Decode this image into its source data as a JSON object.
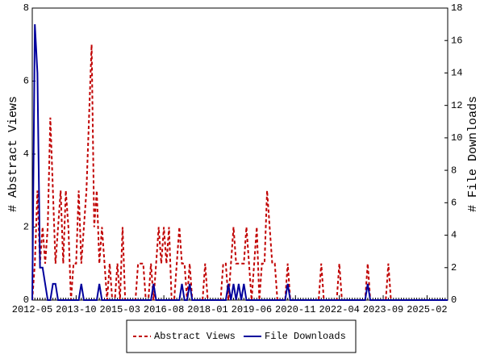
{
  "chart_data": {
    "type": "line",
    "y_label": "# Abstract Views",
    "y2_label": "# File Downloads",
    "x": [
      "2012-05",
      "2012-06",
      "2012-07",
      "2012-08",
      "2012-09",
      "2012-10",
      "2012-11",
      "2012-12",
      "2013-01",
      "2013-02",
      "2013-03",
      "2013-04",
      "2013-05",
      "2013-06",
      "2013-07",
      "2013-08",
      "2013-09",
      "2013-10",
      "2013-11",
      "2013-12",
      "2014-01",
      "2014-02",
      "2014-03",
      "2014-04",
      "2014-05",
      "2014-06",
      "2014-07",
      "2014-08",
      "2014-09",
      "2014-10",
      "2014-11",
      "2014-12",
      "2015-01",
      "2015-02",
      "2015-03",
      "2015-04",
      "2015-05",
      "2015-06",
      "2015-07",
      "2015-08",
      "2015-09",
      "2015-10",
      "2015-11",
      "2015-12",
      "2016-01",
      "2016-02",
      "2016-03",
      "2016-04",
      "2016-05",
      "2016-06",
      "2016-07",
      "2016-08",
      "2016-09",
      "2016-10",
      "2016-11",
      "2016-12",
      "2017-01",
      "2017-02",
      "2017-03",
      "2017-04",
      "2017-05",
      "2017-06",
      "2017-07",
      "2017-08",
      "2017-09",
      "2017-10",
      "2017-11",
      "2017-12",
      "2018-01",
      "2018-02",
      "2018-03",
      "2018-04",
      "2018-05",
      "2018-06",
      "2018-07",
      "2018-08",
      "2018-09",
      "2018-10",
      "2018-11",
      "2018-12",
      "2019-01",
      "2019-02",
      "2019-03",
      "2019-04",
      "2019-05",
      "2019-06",
      "2019-07",
      "2019-08",
      "2019-09",
      "2019-10",
      "2019-11",
      "2019-12",
      "2020-01",
      "2020-02",
      "2020-03",
      "2020-04",
      "2020-05",
      "2020-06",
      "2020-07",
      "2020-08",
      "2020-09",
      "2020-10",
      "2020-11",
      "2020-12",
      "2021-01",
      "2021-02",
      "2021-03",
      "2021-04",
      "2021-05",
      "2021-06",
      "2021-07",
      "2021-08",
      "2021-09",
      "2021-10",
      "2021-11",
      "2021-12",
      "2022-01",
      "2022-02",
      "2022-03",
      "2022-04",
      "2022-05",
      "2022-06",
      "2022-07",
      "2022-08",
      "2022-09",
      "2022-10",
      "2022-11",
      "2022-12",
      "2023-01",
      "2023-02",
      "2023-03",
      "2023-04",
      "2023-05",
      "2023-06",
      "2023-07",
      "2023-08",
      "2023-09",
      "2023-10",
      "2023-11",
      "2023-12",
      "2024-01",
      "2024-02",
      "2024-03",
      "2024-04",
      "2024-05",
      "2024-06",
      "2024-07",
      "2024-08",
      "2024-09",
      "2024-10",
      "2024-11",
      "2024-12",
      "2025-01",
      "2025-02",
      "2025-03",
      "2025-04",
      "2025-05",
      "2025-06",
      "2025-07",
      "2025-08",
      "2025-09",
      "2025-10"
    ],
    "xticks": [
      "2012-05",
      "2013-10",
      "2015-03",
      "2016-08",
      "2018-01",
      "2019-06",
      "2020-11",
      "2022-04",
      "2023-09",
      "2025-02"
    ],
    "series": [
      {
        "name": "Abstract Views",
        "color": "#c00000",
        "dash": true,
        "values": [
          0,
          1,
          3,
          1,
          2,
          1,
          2,
          5,
          3,
          1,
          2,
          3,
          1,
          3,
          2,
          0,
          1,
          1,
          3,
          1,
          2,
          3,
          5,
          7,
          2,
          3,
          1,
          2,
          1,
          0,
          1,
          0,
          0,
          1,
          0,
          2,
          0,
          0,
          0,
          0,
          0,
          1,
          1,
          1,
          0,
          0,
          1,
          0,
          1,
          2,
          1,
          2,
          1,
          2,
          0,
          0,
          1,
          2,
          1,
          1,
          0,
          1,
          0,
          0,
          0,
          0,
          0,
          1,
          0,
          0,
          0,
          0,
          0,
          0,
          1,
          1,
          0,
          1,
          2,
          1,
          1,
          1,
          1,
          2,
          1,
          0,
          1,
          2,
          0,
          1,
          1,
          3,
          2,
          1,
          1,
          0,
          0,
          0,
          0,
          1,
          0,
          0,
          0,
          0,
          0,
          0,
          0,
          0,
          0,
          0,
          0,
          0,
          1,
          0,
          0,
          0,
          0,
          0,
          0,
          1,
          0,
          0,
          0,
          0,
          0,
          0,
          0,
          0,
          0,
          0,
          1,
          0,
          0,
          0,
          0,
          0,
          0,
          0,
          1,
          0,
          0,
          0,
          0,
          0,
          0,
          0,
          0,
          0,
          0,
          0,
          0,
          0,
          0,
          0,
          0,
          0,
          0,
          0,
          0,
          0,
          0,
          0
        ]
      },
      {
        "name": "File Downloads",
        "color": "#00009c",
        "dash": false,
        "axis": "y2",
        "values": [
          0,
          17,
          14,
          2,
          2,
          1,
          0,
          0,
          1,
          1,
          0,
          0,
          0,
          0,
          0,
          0,
          0,
          0,
          0,
          1,
          0,
          0,
          0,
          0,
          0,
          0,
          1,
          0,
          0,
          0,
          0,
          0,
          0,
          0,
          0,
          0,
          0,
          0,
          0,
          0,
          0,
          0,
          0,
          0,
          0,
          0,
          0,
          1,
          0,
          0,
          0,
          0,
          0,
          0,
          0,
          0,
          0,
          0,
          1,
          0,
          0,
          1,
          0,
          0,
          0,
          0,
          0,
          0,
          0,
          0,
          0,
          0,
          0,
          0,
          0,
          0,
          1,
          0,
          1,
          0,
          1,
          0,
          1,
          0,
          0,
          0,
          0,
          0,
          0,
          0,
          0,
          0,
          0,
          0,
          0,
          0,
          0,
          0,
          0,
          1,
          0,
          0,
          0,
          0,
          0,
          0,
          0,
          0,
          0,
          0,
          0,
          0,
          0,
          0,
          0,
          0,
          0,
          0,
          0,
          0,
          0,
          0,
          0,
          0,
          0,
          0,
          0,
          0,
          0,
          0,
          1,
          0,
          0,
          0,
          0,
          0,
          0,
          0,
          0,
          0,
          0,
          0,
          0,
          0,
          0,
          0,
          0,
          0,
          0,
          0,
          0,
          0,
          0,
          0,
          0,
          0,
          0,
          0,
          0,
          0,
          0,
          0
        ]
      }
    ],
    "ylim": [
      0,
      8
    ],
    "yticks": [
      0,
      2,
      4,
      6,
      8
    ],
    "y2lim": [
      0,
      18
    ],
    "y2ticks": [
      0,
      2,
      4,
      6,
      8,
      10,
      12,
      14,
      16,
      18
    ],
    "legend": "bottom"
  }
}
